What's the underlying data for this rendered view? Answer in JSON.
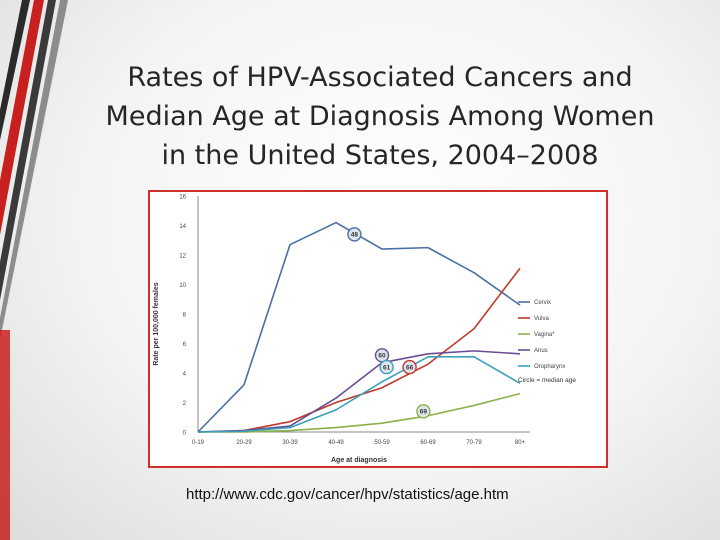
{
  "slide": {
    "title_lines": [
      "Rates of HPV-Associated Cancers and",
      "Median Age at Diagnosis Among Women",
      "in the United States, 2004–2008"
    ],
    "source_url": "http://www.cdc.gov/cancer/hpv/statistics/age.htm",
    "accent_colors": [
      "#c8201e",
      "#3a3a3a"
    ]
  },
  "chart_data": {
    "type": "line",
    "title": "",
    "xlabel": "Age at diagnosis",
    "ylabel": "Rate per 100,000 females",
    "categories": [
      "0-19",
      "20-29",
      "30-39",
      "40-49",
      "50-59",
      "60-69",
      "70-79",
      "80+"
    ],
    "yticks": [
      0,
      2,
      4,
      6,
      8,
      10,
      12,
      14,
      16
    ],
    "ylim": [
      0,
      16
    ],
    "grid": false,
    "legend_position": "right",
    "series": [
      {
        "name": "Cervix",
        "color": "#4a6fa5",
        "values": [
          0,
          3.2,
          12.7,
          14.2,
          12.4,
          12.5,
          10.8,
          8.6
        ],
        "median_age": "48",
        "median_at": 3.4,
        "median_value": 13.4
      },
      {
        "name": "Vulva",
        "color": "#c0392b",
        "values": [
          0,
          0.1,
          0.7,
          2.0,
          3.0,
          4.6,
          7.0,
          11.1
        ],
        "median_age": "66",
        "median_at": 4.6,
        "median_value": 4.4
      },
      {
        "name": "Vagina*",
        "color": "#8db04a",
        "values": [
          0,
          0,
          0.1,
          0.3,
          0.6,
          1.1,
          1.8,
          2.6
        ],
        "median_age": "69",
        "median_at": 4.9,
        "median_value": 1.4
      },
      {
        "name": "Anus",
        "color": "#6a4c93",
        "values": [
          0,
          0.1,
          0.4,
          2.3,
          4.7,
          5.3,
          5.5,
          5.3
        ],
        "median_age": "60",
        "median_at": 4.0,
        "median_value": 5.2
      },
      {
        "name": "Oropharynx",
        "color": "#3aa0b8",
        "values": [
          0,
          0.05,
          0.3,
          1.5,
          3.4,
          5.1,
          5.1,
          3.3
        ],
        "median_age": "61",
        "median_at": 4.1,
        "median_value": 4.4
      }
    ],
    "legend_note": "Circle = median age"
  }
}
